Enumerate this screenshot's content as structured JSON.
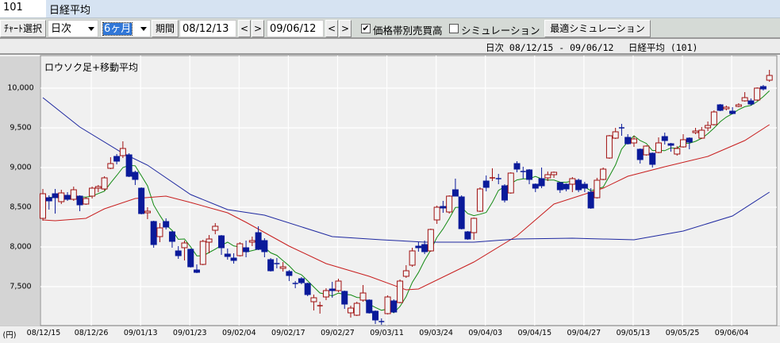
{
  "header": {
    "code": "101",
    "name": "日経平均"
  },
  "toolbar": {
    "chart_select_label": "ﾁｬｰﾄ選択",
    "interval_value": "日次",
    "span_value": "6ヶ月",
    "period_label": "期間",
    "start_date": "08/12/13",
    "end_date": "09/06/12",
    "prev_label": "<",
    "next_label": ">",
    "volume_by_price": {
      "label": "価格帯別売買高",
      "checked": true
    },
    "simulation": {
      "label": "シミュレーション",
      "checked": false
    },
    "optimal_simulation_label": "最適シミュレーション",
    "check_mark": "✔"
  },
  "info": {
    "text": "日次 08/12/15 - 09/06/12　 日経平均 (101)"
  },
  "colors": {
    "up": "#a01010",
    "down": "#0a1a9a",
    "ma_short": "#138a13",
    "ma_mid": "#c81e1e",
    "ma_long": "#1e28a0",
    "plot_bg": "#f0f0f0",
    "grid": "#ffffff"
  },
  "chart_data": {
    "type": "candlestick",
    "title": "ロウソク足+移動平均",
    "unit_label": "(円)",
    "ylim": [
      7000,
      10350
    ],
    "y_ticks": [
      {
        "v": 10000,
        "label": "10,000"
      },
      {
        "v": 9500,
        "label": "9,500"
      },
      {
        "v": 9000,
        "label": "9,000"
      },
      {
        "v": 8500,
        "label": "8,500"
      },
      {
        "v": 8000,
        "label": "8,000"
      },
      {
        "v": 7500,
        "label": "7,500"
      }
    ],
    "x_ticks": [
      {
        "i": 0,
        "label": "08/12/15"
      },
      {
        "i": 8,
        "label": "08/12/26"
      },
      {
        "i": 16,
        "label": "09/01/13"
      },
      {
        "i": 24,
        "label": "09/01/23"
      },
      {
        "i": 32,
        "label": "09/02/04"
      },
      {
        "i": 40,
        "label": "09/02/17"
      },
      {
        "i": 48,
        "label": "09/02/27"
      },
      {
        "i": 56,
        "label": "09/03/11"
      },
      {
        "i": 64,
        "label": "09/03/24"
      },
      {
        "i": 72,
        "label": "09/04/03"
      },
      {
        "i": 80,
        "label": "09/04/15"
      },
      {
        "i": 88,
        "label": "09/04/27"
      },
      {
        "i": 96,
        "label": "09/05/13"
      },
      {
        "i": 104,
        "label": "09/05/25"
      },
      {
        "i": 112,
        "label": "09/06/04"
      }
    ],
    "grid": true,
    "ohlc": [
      [
        8360,
        8730,
        8330,
        8670
      ],
      [
        8620,
        8650,
        8470,
        8580
      ],
      [
        8670,
        8730,
        8420,
        8620
      ],
      [
        8570,
        8720,
        8540,
        8680
      ],
      [
        8650,
        8690,
        8580,
        8600
      ],
      [
        8600,
        8760,
        8580,
        8720
      ],
      [
        8640,
        8650,
        8450,
        8530
      ],
      [
        8540,
        8630,
        8530,
        8610
      ],
      [
        8640,
        8760,
        8610,
        8740
      ],
      [
        8740,
        8780,
        8690,
        8760
      ],
      [
        8730,
        8890,
        8710,
        8870
      ],
      [
        8990,
        9130,
        8980,
        9050
      ],
      [
        9140,
        9170,
        9040,
        9080
      ],
      [
        9150,
        9330,
        9120,
        9240
      ],
      [
        9160,
        9180,
        8880,
        8890
      ],
      [
        8940,
        8960,
        8780,
        8850
      ],
      [
        8740,
        8750,
        8410,
        8420
      ],
      [
        8430,
        8500,
        8350,
        8450
      ],
      [
        8320,
        8330,
        7990,
        8030
      ],
      [
        8130,
        8300,
        8060,
        8240
      ],
      [
        8320,
        8360,
        8220,
        8250
      ],
      [
        8190,
        8200,
        7990,
        8070
      ],
      [
        7950,
        8010,
        7850,
        7890
      ],
      [
        7990,
        8080,
        7830,
        8050
      ],
      [
        7970,
        7980,
        7740,
        7750
      ],
      [
        7710,
        7780,
        7670,
        7680
      ],
      [
        7780,
        8090,
        7770,
        8070
      ],
      [
        8060,
        8150,
        7920,
        8100
      ],
      [
        8210,
        8300,
        8160,
        8260
      ],
      [
        8140,
        8150,
        7900,
        7990
      ],
      [
        7910,
        7980,
        7840,
        7880
      ],
      [
        7860,
        7920,
        7790,
        7830
      ],
      [
        7890,
        8060,
        7880,
        8040
      ],
      [
        7990,
        8080,
        7870,
        7940
      ],
      [
        8060,
        8130,
        8010,
        8080
      ],
      [
        8180,
        8260,
        7960,
        7970
      ],
      [
        8080,
        8110,
        7870,
        7940
      ],
      [
        7840,
        7860,
        7690,
        7700
      ],
      [
        7790,
        7860,
        7730,
        7780
      ],
      [
        7730,
        7810,
        7690,
        7750
      ],
      [
        7690,
        7710,
        7570,
        7640
      ],
      [
        7540,
        7570,
        7480,
        7530
      ],
      [
        7600,
        7620,
        7530,
        7550
      ],
      [
        7540,
        7550,
        7380,
        7400
      ],
      [
        7310,
        7400,
        7200,
        7360
      ],
      [
        7250,
        7310,
        7160,
        7260
      ],
      [
        7370,
        7480,
        7330,
        7450
      ],
      [
        7470,
        7560,
        7360,
        7450
      ],
      [
        7450,
        7600,
        7430,
        7570
      ],
      [
        7440,
        7450,
        7220,
        7280
      ],
      [
        7170,
        7260,
        7110,
        7230
      ],
      [
        7140,
        7310,
        7130,
        7290
      ],
      [
        7330,
        7520,
        7310,
        7420
      ],
      [
        7330,
        7340,
        7160,
        7170
      ],
      [
        7190,
        7200,
        7030,
        7080
      ],
      [
        7060,
        7100,
        7020,
        7050
      ],
      [
        7160,
        7390,
        7150,
        7370
      ],
      [
        7320,
        7340,
        7170,
        7180
      ],
      [
        7300,
        7590,
        7290,
        7570
      ],
      [
        7630,
        7770,
        7610,
        7700
      ],
      [
        7770,
        7990,
        7750,
        7950
      ],
      [
        8010,
        8060,
        7940,
        7990
      ],
      [
        8030,
        8080,
        7910,
        7940
      ],
      [
        7950,
        8230,
        7940,
        8220
      ],
      [
        8340,
        8520,
        8290,
        8500
      ],
      [
        8510,
        8580,
        8430,
        8490
      ],
      [
        8440,
        8650,
        8420,
        8640
      ],
      [
        8720,
        8860,
        8640,
        8640
      ],
      [
        8630,
        8650,
        8220,
        8230
      ],
      [
        8190,
        8200,
        8090,
        8100
      ],
      [
        8180,
        8370,
        8090,
        8360
      ],
      [
        8450,
        8750,
        8440,
        8730
      ],
      [
        8830,
        8900,
        8700,
        8750
      ],
      [
        8860,
        8990,
        8830,
        8870
      ],
      [
        8860,
        8920,
        8790,
        8850
      ],
      [
        8770,
        8790,
        8560,
        8590
      ],
      [
        8680,
        8940,
        8670,
        8930
      ],
      [
        9050,
        9080,
        8940,
        8980
      ],
      [
        8950,
        9010,
        8860,
        8940
      ],
      [
        8970,
        8980,
        8790,
        8850
      ],
      [
        8790,
        8800,
        8690,
        8740
      ],
      [
        8860,
        9000,
        8740,
        8770
      ],
      [
        8870,
        8950,
        8830,
        8910
      ],
      [
        8910,
        8950,
        8870,
        8940
      ],
      [
        8810,
        8820,
        8680,
        8720
      ],
      [
        8790,
        8800,
        8700,
        8730
      ],
      [
        8790,
        8880,
        8690,
        8860
      ],
      [
        8840,
        8860,
        8690,
        8720
      ],
      [
        8790,
        8820,
        8690,
        8740
      ],
      [
        8690,
        8740,
        8480,
        8490
      ],
      [
        8620,
        8870,
        8610,
        8840
      ],
      [
        8850,
        9000,
        8840,
        8980
      ],
      [
        9120,
        9410,
        9110,
        9400
      ],
      [
        9370,
        9500,
        9360,
        9450
      ],
      [
        9500,
        9550,
        9400,
        9490
      ],
      [
        9380,
        9420,
        9290,
        9300
      ],
      [
        9310,
        9400,
        9260,
        9360
      ],
      [
        9230,
        9240,
        9050,
        9100
      ],
      [
        9160,
        9280,
        9150,
        9270
      ],
      [
        9180,
        9190,
        9000,
        9040
      ],
      [
        9190,
        9380,
        9180,
        9310
      ],
      [
        9390,
        9440,
        9290,
        9340
      ],
      [
        9300,
        9310,
        9200,
        9280
      ],
      [
        9170,
        9270,
        9150,
        9240
      ],
      [
        9260,
        9420,
        9250,
        9350
      ],
      [
        9370,
        9380,
        9230,
        9320
      ],
      [
        9440,
        9500,
        9420,
        9460
      ],
      [
        9370,
        9510,
        9360,
        9470
      ],
      [
        9500,
        9580,
        9460,
        9530
      ],
      [
        9540,
        9720,
        9530,
        9700
      ],
      [
        9790,
        9800,
        9710,
        9720
      ],
      [
        9740,
        9780,
        9720,
        9760
      ],
      [
        9710,
        9760,
        9670,
        9680
      ],
      [
        9770,
        9810,
        9760,
        9790
      ],
      [
        9840,
        9950,
        9830,
        9880
      ],
      [
        9840,
        9870,
        9780,
        9800
      ],
      [
        9850,
        10010,
        9840,
        10000
      ],
      [
        10020,
        10040,
        9970,
        9990
      ],
      [
        10100,
        10230,
        10080,
        10160
      ]
    ],
    "moving_averages": [
      {
        "kind": "short",
        "period": 5
      },
      {
        "kind": "mid",
        "points": [
          [
            0,
            8340
          ],
          [
            2,
            8330
          ],
          [
            7,
            8360
          ],
          [
            10,
            8480
          ],
          [
            15,
            8610
          ],
          [
            20,
            8640
          ],
          [
            24,
            8560
          ],
          [
            30,
            8430
          ],
          [
            33,
            8310
          ],
          [
            40,
            8010
          ],
          [
            46,
            7790
          ],
          [
            53,
            7630
          ],
          [
            59,
            7460
          ],
          [
            61,
            7470
          ],
          [
            70,
            7810
          ],
          [
            77,
            8140
          ],
          [
            83,
            8540
          ],
          [
            91,
            8740
          ],
          [
            95,
            8890
          ],
          [
            101,
            9010
          ],
          [
            108,
            9140
          ],
          [
            114,
            9340
          ],
          [
            118,
            9540
          ]
        ]
      },
      {
        "kind": "long",
        "points": [
          [
            0,
            9880
          ],
          [
            6,
            9510
          ],
          [
            13,
            9180
          ],
          [
            17,
            9030
          ],
          [
            24,
            8660
          ],
          [
            30,
            8470
          ],
          [
            36,
            8400
          ],
          [
            47,
            8130
          ],
          [
            55,
            8090
          ],
          [
            62,
            8060
          ],
          [
            70,
            8060
          ],
          [
            77,
            8100
          ],
          [
            86,
            8110
          ],
          [
            96,
            8090
          ],
          [
            104,
            8200
          ],
          [
            112,
            8390
          ],
          [
            118,
            8690
          ]
        ]
      }
    ]
  }
}
